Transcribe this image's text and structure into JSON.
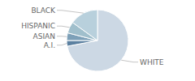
{
  "chart_data": {
    "type": "pie",
    "categories": [
      "WHITE",
      "A.I.",
      "ASIAN",
      "HISPANIC",
      "BLACK"
    ],
    "values": [
      72,
      3,
      4,
      6,
      15
    ],
    "colors": [
      "#ccd8e4",
      "#5b80a0",
      "#7da0b8",
      "#a0bfcc",
      "#b8d0dc"
    ]
  }
}
